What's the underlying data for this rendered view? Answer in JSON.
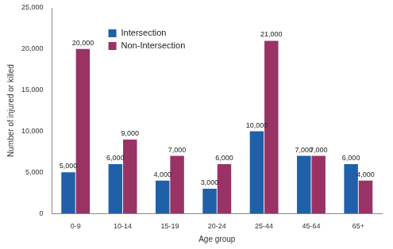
{
  "chart_data": {
    "type": "bar",
    "x_label": "Age group",
    "y_label": "Number of injured or killed",
    "categories": [
      "0-9",
      "10-14",
      "15-19",
      "20-24",
      "25-44",
      "45-64",
      "65+"
    ],
    "series": [
      {
        "name": "Intersection",
        "color": "#2060a8",
        "values": [
          5000,
          6000,
          4000,
          3000,
          10000,
          7000,
          6000
        ],
        "value_labels": [
          "5,000",
          "6,000",
          "4,000",
          "3,000",
          "10,000",
          "7,000",
          "6,000"
        ]
      },
      {
        "name": "Non-Intersection",
        "color": "#993366",
        "values": [
          20000,
          9000,
          7000,
          6000,
          21000,
          7000,
          4000
        ],
        "value_labels": [
          "20,000",
          "9,000",
          "7,000",
          "6,000",
          "21,000",
          "7,000",
          "4,000"
        ]
      }
    ],
    "ylim": [
      0,
      25000
    ],
    "yticks": [
      0,
      {
        "value": 5000,
        "label": "5,000"
      },
      {
        "value": 10000,
        "label": "10,000"
      },
      {
        "value": 15000,
        "label": "15,000"
      },
      {
        "value": 20000,
        "label": "20,000"
      },
      {
        "value": 25000,
        "label": "25,000"
      }
    ],
    "grid": false,
    "legend": "upper left",
    "data_labels": true
  }
}
